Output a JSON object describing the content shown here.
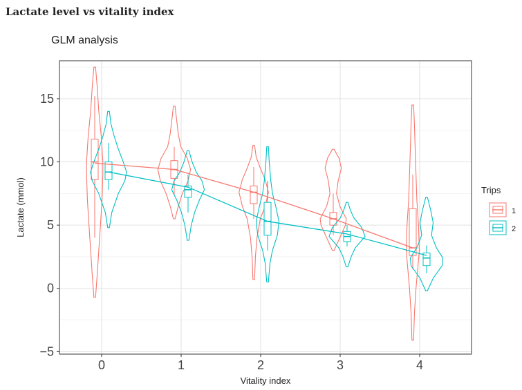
{
  "page": {
    "heading": "Lactate level vs vitality index"
  },
  "chart_data": {
    "type": "violin",
    "subtitle": "GLM analysis",
    "xlabel": "Vitality index",
    "ylabel": "Lactate (mmol)",
    "categories": [
      "0",
      "1",
      "2",
      "3",
      "4"
    ],
    "yticks": [
      "−5",
      "0",
      "5",
      "10",
      "15"
    ],
    "ylim": [
      -5.2,
      18
    ],
    "grid": true,
    "legend": {
      "title": "Trips",
      "position": "right"
    },
    "series": [
      {
        "name": "1",
        "color": "#F8766D",
        "fit": [
          9.9,
          9.4,
          7.6,
          5.5,
          3.2
        ],
        "groups": [
          {
            "x": 0,
            "box": {
              "q1": 8.6,
              "median": 10.0,
              "q3": 11.8,
              "wlo": 4.0,
              "whi": 15.2
            },
            "violin": {
              "min": -0.7,
              "max": 17.5,
              "shape": [
                [
                  -0.7,
                  0.01
                ],
                [
                  1,
                  0.03
                ],
                [
                  3,
                  0.05
                ],
                [
                  5,
                  0.07
                ],
                [
                  7,
                  0.09
                ],
                [
                  9,
                  0.1
                ],
                [
                  10,
                  0.1
                ],
                [
                  12,
                  0.08
                ],
                [
                  14,
                  0.05
                ],
                [
                  16,
                  0.03
                ],
                [
                  17.5,
                  0.01
                ]
              ]
            }
          },
          {
            "x": 1,
            "box": {
              "q1": 8.7,
              "median": 9.4,
              "q3": 10.1,
              "wlo": 7.4,
              "whi": 11.2
            },
            "violin": {
              "min": 5.5,
              "max": 14.4,
              "shape": [
                [
                  5.5,
                  0.01
                ],
                [
                  6.5,
                  0.05
                ],
                [
                  7.5,
                  0.1
                ],
                [
                  8.5,
                  0.17
                ],
                [
                  9.4,
                  0.2
                ],
                [
                  10.3,
                  0.16
                ],
                [
                  11.2,
                  0.08
                ],
                [
                  12.2,
                  0.05
                ],
                [
                  13.3,
                  0.03
                ],
                [
                  14.4,
                  0.01
                ]
              ]
            }
          },
          {
            "x": 2,
            "box": {
              "q1": 6.7,
              "median": 7.6,
              "q3": 8.1,
              "wlo": 5.5,
              "whi": 9.6
            },
            "violin": {
              "min": 0.7,
              "max": 11.3,
              "shape": [
                [
                  0.7,
                  0.01
                ],
                [
                  2.5,
                  0.02
                ],
                [
                  4,
                  0.04
                ],
                [
                  5.5,
                  0.08
                ],
                [
                  6.5,
                  0.14
                ],
                [
                  7.6,
                  0.18
                ],
                [
                  8.6,
                  0.14
                ],
                [
                  9.5,
                  0.08
                ],
                [
                  10.4,
                  0.03
                ],
                [
                  11.3,
                  0.01
                ]
              ]
            }
          },
          {
            "x": 3,
            "box": {
              "q1": 5.0,
              "median": 5.5,
              "q3": 6.0,
              "wlo": 4.2,
              "whi": 7.5
            },
            "violin": {
              "min": 3.0,
              "max": 11.0,
              "shape": [
                [
                  3,
                  0.01
                ],
                [
                  4,
                  0.08
                ],
                [
                  5,
                  0.15
                ],
                [
                  5.5,
                  0.16
                ],
                [
                  6.5,
                  0.08
                ],
                [
                  7.5,
                  0.04
                ],
                [
                  8.5,
                  0.06
                ],
                [
                  9.5,
                  0.1
                ],
                [
                  10.3,
                  0.07
                ],
                [
                  11,
                  0.01
                ]
              ]
            }
          },
          {
            "x": 4,
            "box": {
              "q1": 2.6,
              "median": 3.2,
              "q3": 6.3,
              "wlo": 1.5,
              "whi": 9.0
            },
            "violin": {
              "min": -4.1,
              "max": 14.5,
              "shape": [
                [
                  -4.1,
                  0.01
                ],
                [
                  -2,
                  0.02
                ],
                [
                  0,
                  0.04
                ],
                [
                  1.5,
                  0.06
                ],
                [
                  3,
                  0.08
                ],
                [
                  5,
                  0.07
                ],
                [
                  7,
                  0.05
                ],
                [
                  9,
                  0.04
                ],
                [
                  11,
                  0.03
                ],
                [
                  13,
                  0.02
                ],
                [
                  14.5,
                  0.01
                ]
              ]
            }
          }
        ]
      },
      {
        "name": "2",
        "color": "#00BFC4",
        "fit": [
          9.2,
          8.0,
          5.3,
          4.3,
          2.6
        ],
        "groups": [
          {
            "x": 0,
            "box": {
              "q1": 8.6,
              "median": 9.2,
              "q3": 10.0,
              "wlo": 7.8,
              "whi": 11.5
            },
            "violin": {
              "min": 4.8,
              "max": 14.0,
              "shape": [
                [
                  4.8,
                  0.01
                ],
                [
                  6,
                  0.04
                ],
                [
                  7.5,
                  0.12
                ],
                [
                  8.5,
                  0.2
                ],
                [
                  9.2,
                  0.22
                ],
                [
                  10,
                  0.18
                ],
                [
                  11,
                  0.12
                ],
                [
                  12,
                  0.07
                ],
                [
                  13,
                  0.03
                ],
                [
                  14,
                  0.01
                ]
              ]
            }
          },
          {
            "x": 1,
            "box": {
              "q1": 7.2,
              "median": 7.8,
              "q3": 8.1,
              "wlo": 6.0,
              "whi": 9.0
            },
            "violin": {
              "min": 3.8,
              "max": 10.9,
              "shape": [
                [
                  3.8,
                  0.01
                ],
                [
                  5,
                  0.04
                ],
                [
                  6,
                  0.08
                ],
                [
                  7,
                  0.14
                ],
                [
                  7.8,
                  0.2
                ],
                [
                  8.5,
                  0.17
                ],
                [
                  9.2,
                  0.1
                ],
                [
                  10,
                  0.05
                ],
                [
                  10.9,
                  0.01
                ]
              ]
            }
          },
          {
            "x": 2,
            "box": {
              "q1": 4.2,
              "median": 5.3,
              "q3": 6.8,
              "wlo": 3.0,
              "whi": 8.5
            },
            "violin": {
              "min": 0.5,
              "max": 11.2,
              "shape": [
                [
                  0.5,
                  0.01
                ],
                [
                  2,
                  0.03
                ],
                [
                  3,
                  0.06
                ],
                [
                  4.2,
                  0.12
                ],
                [
                  5.3,
                  0.14
                ],
                [
                  6.5,
                  0.1
                ],
                [
                  7.5,
                  0.06
                ],
                [
                  8.5,
                  0.04
                ],
                [
                  10,
                  0.02
                ],
                [
                  11.2,
                  0.01
                ]
              ]
            }
          },
          {
            "x": 3,
            "box": {
              "q1": 3.7,
              "median": 4.1,
              "q3": 4.5,
              "wlo": 3.3,
              "whi": 5.0
            },
            "violin": {
              "min": 1.7,
              "max": 6.8,
              "shape": [
                [
                  1.7,
                  0.01
                ],
                [
                  2.5,
                  0.05
                ],
                [
                  3.2,
                  0.1
                ],
                [
                  4.1,
                  0.22
                ],
                [
                  4.8,
                  0.18
                ],
                [
                  5.6,
                  0.08
                ],
                [
                  6.2,
                  0.04
                ],
                [
                  6.8,
                  0.01
                ]
              ]
            }
          },
          {
            "x": 4,
            "box": {
              "q1": 1.8,
              "median": 2.4,
              "q3": 2.8,
              "wlo": 1.2,
              "whi": 3.4
            },
            "violin": {
              "min": -0.2,
              "max": 7.2,
              "shape": [
                [
                  -0.2,
                  0.01
                ],
                [
                  0.8,
                  0.08
                ],
                [
                  1.8,
                  0.19
                ],
                [
                  2.4,
                  0.2
                ],
                [
                  3.2,
                  0.12
                ],
                [
                  4.2,
                  0.06
                ],
                [
                  5.2,
                  0.08
                ],
                [
                  6.2,
                  0.05
                ],
                [
                  7.2,
                  0.01
                ]
              ]
            }
          }
        ]
      }
    ]
  }
}
